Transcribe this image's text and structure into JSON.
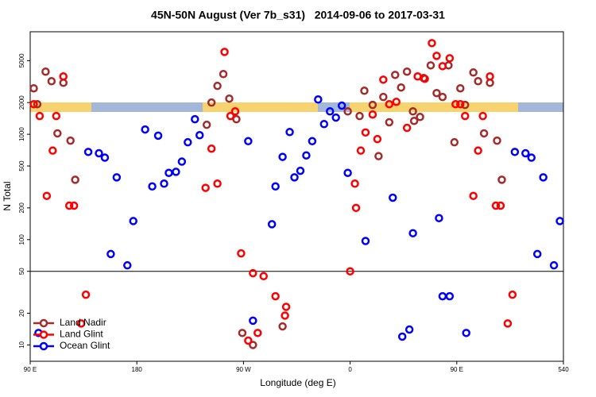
{
  "chart_data": {
    "type": "scatter",
    "title": "45N-50N August (Ver 7b_s31)   2014-09-06 to 2017-03-31",
    "x_label": "Longitude (deg E)",
    "y_label": "N Total",
    "log_y": true,
    "xlim": [
      90,
      540
    ],
    "ylim": [
      7,
      9400
    ],
    "xticks": [
      {
        "value": 90,
        "label": "90 E"
      },
      180,
      {
        "value": 270,
        "label": "90 W"
      },
      {
        "value": 360,
        "label": "0"
      },
      {
        "value": 450,
        "label": "90 E"
      },
      540
    ],
    "yticks": [
      10,
      20,
      50,
      100,
      200,
      500,
      1000,
      2000,
      5000
    ],
    "reference_line": 50,
    "legend": "lower-left",
    "series": [
      {
        "name": "Land Nadir",
        "color": "#a52a2a",
        "x": [
          93,
          96,
          103,
          108,
          113,
          118,
          124,
          128,
          239,
          243,
          248,
          253,
          258,
          264,
          269,
          278,
          303,
          358,
          368,
          372,
          379,
          384,
          388,
          393,
          398,
          403,
          408,
          413,
          414,
          419,
          422,
          428,
          433,
          438,
          443,
          448,
          453,
          457,
          464,
          468,
          473,
          478,
          484,
          488
        ],
        "values": [
          2730,
          1930,
          3930,
          3190,
          1020,
          3080,
          870,
          370,
          1230,
          2000,
          2880,
          3730,
          2180,
          1390,
          13,
          10,
          15,
          1650,
          1490,
          2590,
          1900,
          620,
          2260,
          1300,
          3660,
          2780,
          3930,
          1650,
          1340,
          1460,
          3420,
          4510,
          2460,
          2260,
          4510,
          840,
          2730,
          1900,
          3860,
          3190,
          1020,
          3080,
          870,
          370
        ]
      },
      {
        "name": "Land Glint",
        "color": "#ff0000",
        "x": [
          93,
          98,
          104,
          109,
          112,
          118,
          123,
          127,
          133,
          137,
          238,
          243,
          248,
          254,
          259,
          263,
          268,
          274,
          278,
          282,
          287,
          297,
          305,
          306,
          360,
          364,
          365,
          369,
          373,
          379,
          383,
          388,
          393,
          399,
          408,
          417,
          423,
          429,
          433,
          438,
          444,
          449,
          453,
          457,
          464,
          468,
          472,
          478,
          483,
          487,
          493,
          497
        ],
        "values": [
          1930,
          1490,
          260,
          700,
          1490,
          3540,
          210,
          210,
          16,
          30,
          310,
          730,
          340,
          6050,
          1490,
          1650,
          74,
          11,
          48,
          13,
          45,
          29,
          19,
          23,
          50,
          340,
          200,
          700,
          1040,
          1540,
          900,
          3300,
          1930,
          2030,
          1150,
          3540,
          3360,
          7330,
          5550,
          4430,
          5270,
          1930,
          1930,
          1490,
          260,
          700,
          1490,
          3540,
          210,
          210,
          16,
          30
        ]
      },
      {
        "name": "Ocean Glint",
        "color": "#0000ff",
        "x": [
          97,
          139,
          148,
          153,
          158,
          163,
          172,
          177,
          187,
          193,
          198,
          203,
          207,
          213,
          218,
          223,
          229,
          233,
          274,
          278,
          294,
          297,
          303,
          309,
          313,
          318,
          323,
          328,
          333,
          338,
          343,
          348,
          353,
          358,
          373,
          396,
          404,
          410,
          413,
          435,
          438,
          444,
          458,
          499,
          508,
          513,
          518,
          523,
          532,
          537
        ],
        "values": [
          13,
          680,
          660,
          600,
          73,
          390,
          57,
          150,
          1110,
          320,
          970,
          340,
          430,
          440,
          550,
          840,
          1390,
          980,
          860,
          17,
          140,
          320,
          610,
          1050,
          390,
          450,
          630,
          860,
          2140,
          1250,
          1650,
          1440,
          1870,
          430,
          97,
          250,
          12,
          14,
          115,
          160,
          29,
          29,
          13,
          680,
          660,
          600,
          73,
          390,
          57,
          150
        ]
      }
    ]
  }
}
